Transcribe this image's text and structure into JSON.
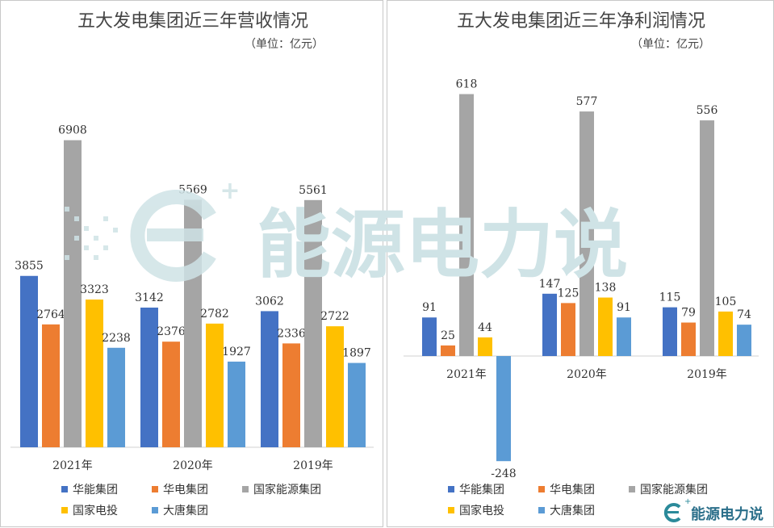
{
  "colors": {
    "华能集团": "#4472C4",
    "华电集团": "#ED7D31",
    "国家能源集团": "#A5A5A5",
    "国家电投": "#FFC000",
    "大唐集团": "#5B9BD5"
  },
  "watermark": {
    "text": "能源电力说",
    "logo_letter": "E",
    "plus": "+"
  },
  "chart_data": [
    {
      "type": "bar",
      "title": "五大发电集团近三年营收情况",
      "unit": "（单位：亿元）",
      "categories": [
        "2021年",
        "2020年",
        "2019年"
      ],
      "ylim": [
        0,
        8500
      ],
      "legend_position": "bottom",
      "series": [
        {
          "name": "华能集团",
          "values": [
            3855,
            3142,
            3062
          ]
        },
        {
          "name": "华电集团",
          "values": [
            2764,
            2376,
            2336
          ]
        },
        {
          "name": "国家能源集团",
          "values": [
            6908,
            5569,
            5561
          ]
        },
        {
          "name": "国家电投",
          "values": [
            3323,
            2782,
            2722
          ]
        },
        {
          "name": "大唐集团",
          "values": [
            2238,
            1927,
            1897
          ]
        }
      ]
    },
    {
      "type": "bar",
      "title": "五大发电集团近三年净利润情况",
      "unit": "（单位：亿元）",
      "categories": [
        "2021年",
        "2020年",
        "2019年"
      ],
      "ylim": [
        -280,
        800
      ],
      "legend_position": "bottom",
      "series": [
        {
          "name": "华能集团",
          "values": [
            91,
            147,
            115
          ]
        },
        {
          "name": "华电集团",
          "values": [
            25,
            125,
            79
          ]
        },
        {
          "name": "国家能源集团",
          "values": [
            618,
            577,
            556
          ]
        },
        {
          "name": "国家电投",
          "values": [
            44,
            138,
            105
          ]
        },
        {
          "name": "大唐集团",
          "values": [
            -248,
            91,
            74
          ]
        }
      ]
    }
  ]
}
